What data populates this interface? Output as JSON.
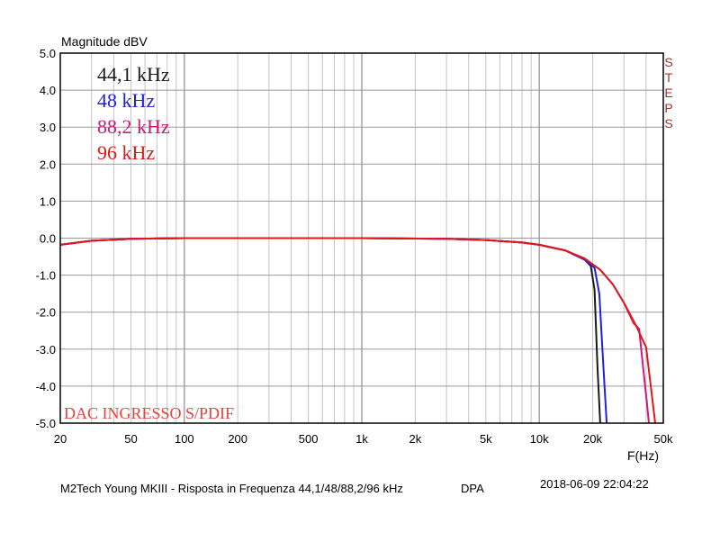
{
  "chart_data": {
    "type": "line",
    "title": "",
    "ylabel": "Magnitude dBV",
    "xlabel": "F(Hz)",
    "xscale": "log",
    "xlim": [
      20,
      50000
    ],
    "ylim": [
      -5.0,
      5.0
    ],
    "grid": true,
    "x_ticks": [
      {
        "v": 20,
        "label": "20"
      },
      {
        "v": 50,
        "label": "50"
      },
      {
        "v": 100,
        "label": "100"
      },
      {
        "v": 200,
        "label": "200"
      },
      {
        "v": 500,
        "label": "500"
      },
      {
        "v": 1000,
        "label": "1k"
      },
      {
        "v": 2000,
        "label": "2k"
      },
      {
        "v": 5000,
        "label": "5k"
      },
      {
        "v": 10000,
        "label": "10k"
      },
      {
        "v": 20000,
        "label": "20k"
      },
      {
        "v": 50000,
        "label": "50k"
      }
    ],
    "y_ticks": [
      {
        "v": 5,
        "label": "5.0"
      },
      {
        "v": 4,
        "label": "4.0"
      },
      {
        "v": 3,
        "label": "3.0"
      },
      {
        "v": 2,
        "label": "2.0"
      },
      {
        "v": 1,
        "label": "1.0"
      },
      {
        "v": 0,
        "label": "0.0"
      },
      {
        "v": -1,
        "label": "-1.0"
      },
      {
        "v": -2,
        "label": "-2.0"
      },
      {
        "v": -3,
        "label": "-3.0"
      },
      {
        "v": -4,
        "label": "-4.0"
      },
      {
        "v": -5,
        "label": "-5.0"
      }
    ],
    "series": [
      {
        "name": "44,1 kHz",
        "color": "#1a1a1a",
        "points": [
          [
            20,
            -0.18
          ],
          [
            30,
            -0.07
          ],
          [
            50,
            -0.02
          ],
          [
            100,
            0.0
          ],
          [
            1000,
            0.0
          ],
          [
            3000,
            -0.02
          ],
          [
            5000,
            -0.05
          ],
          [
            8000,
            -0.12
          ],
          [
            10000,
            -0.18
          ],
          [
            14000,
            -0.33
          ],
          [
            18000,
            -0.58
          ],
          [
            19500,
            -0.75
          ],
          [
            20500,
            -1.4
          ],
          [
            21300,
            -3.5
          ],
          [
            22050,
            -5.0
          ]
        ]
      },
      {
        "name": "48 kHz",
        "color": "#2020e0",
        "points": [
          [
            20,
            -0.18
          ],
          [
            30,
            -0.07
          ],
          [
            50,
            -0.02
          ],
          [
            100,
            0.0
          ],
          [
            1000,
            0.0
          ],
          [
            3000,
            -0.02
          ],
          [
            5000,
            -0.05
          ],
          [
            8000,
            -0.12
          ],
          [
            10000,
            -0.18
          ],
          [
            14000,
            -0.33
          ],
          [
            18000,
            -0.58
          ],
          [
            20500,
            -0.8
          ],
          [
            21800,
            -1.5
          ],
          [
            23000,
            -3.5
          ],
          [
            24000,
            -5.0
          ]
        ]
      },
      {
        "name": "88,2 kHz",
        "color": "#cc1a7a",
        "points": [
          [
            20,
            -0.18
          ],
          [
            30,
            -0.07
          ],
          [
            50,
            -0.02
          ],
          [
            100,
            0.0
          ],
          [
            1000,
            0.0
          ],
          [
            3000,
            -0.02
          ],
          [
            5000,
            -0.05
          ],
          [
            8000,
            -0.12
          ],
          [
            10000,
            -0.18
          ],
          [
            14000,
            -0.33
          ],
          [
            18000,
            -0.55
          ],
          [
            22000,
            -0.85
          ],
          [
            26000,
            -1.25
          ],
          [
            30000,
            -1.75
          ],
          [
            34000,
            -2.3
          ],
          [
            36500,
            -2.45
          ],
          [
            38500,
            -3.5
          ],
          [
            40500,
            -4.5
          ],
          [
            41500,
            -5.0
          ]
        ]
      },
      {
        "name": "96 kHz",
        "color": "#e01818",
        "points": [
          [
            20,
            -0.18
          ],
          [
            30,
            -0.07
          ],
          [
            50,
            -0.02
          ],
          [
            100,
            0.0
          ],
          [
            1000,
            0.0
          ],
          [
            3000,
            -0.02
          ],
          [
            5000,
            -0.05
          ],
          [
            8000,
            -0.12
          ],
          [
            10000,
            -0.18
          ],
          [
            14000,
            -0.33
          ],
          [
            18000,
            -0.55
          ],
          [
            22000,
            -0.85
          ],
          [
            26000,
            -1.25
          ],
          [
            30000,
            -1.75
          ],
          [
            35000,
            -2.35
          ],
          [
            40000,
            -2.95
          ],
          [
            42500,
            -4.0
          ],
          [
            45000,
            -5.0
          ]
        ]
      }
    ]
  },
  "labels": {
    "ylabel": "Magnitude dBV",
    "xlabel": "F(Hz)",
    "steps": "STEPS",
    "note": "DAC INGRESSO S/PDIF",
    "caption": "M2Tech Young MKIII - Risposta in Frequenza 44,1/48/88,2/96 kHz",
    "badge": "DPA",
    "timestamp": "2018-06-09 22:04:22"
  },
  "legend": [
    {
      "text": "44,1 kHz",
      "color": "#1a1a1a"
    },
    {
      "text": "48 kHz",
      "color": "#2020e0"
    },
    {
      "text": "88,2 kHz",
      "color": "#cc1a7a"
    },
    {
      "text": "96 kHz",
      "color": "#e01818"
    }
  ]
}
